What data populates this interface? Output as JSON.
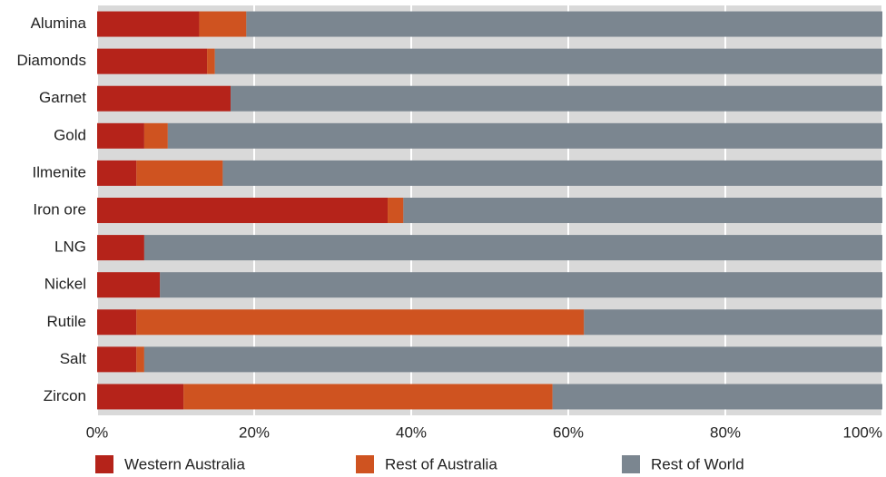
{
  "chart_data": {
    "type": "stacked_barh",
    "categories": [
      "Alumina",
      "Diamonds",
      "Garnet",
      "Gold",
      "Ilmenite",
      "Iron ore",
      "LNG",
      "Nickel",
      "Rutile",
      "Salt",
      "Zircon"
    ],
    "series": [
      {
        "name": "Western Australia",
        "color": "#b5231a",
        "values": [
          13,
          14,
          17,
          6,
          5,
          37,
          6,
          8,
          5,
          5,
          11
        ]
      },
      {
        "name": "Rest of Australia",
        "color": "#cf5320",
        "values": [
          6,
          1,
          0,
          3,
          11,
          2,
          0,
          0,
          57,
          1,
          47
        ]
      },
      {
        "name": "Rest of World",
        "color": "#7b8690",
        "values": [
          81,
          85,
          83,
          91,
          84,
          61,
          94,
          92,
          38,
          94,
          42
        ]
      }
    ],
    "xlim": [
      0,
      100
    ],
    "xticks": [
      {
        "value": 0,
        "label": "0%"
      },
      {
        "value": 20,
        "label": "20%"
      },
      {
        "value": 40,
        "label": "40%"
      },
      {
        "value": 60,
        "label": "60%"
      },
      {
        "value": 80,
        "label": "80%"
      },
      {
        "value": 100,
        "label": "100%"
      }
    ],
    "grid": true
  }
}
